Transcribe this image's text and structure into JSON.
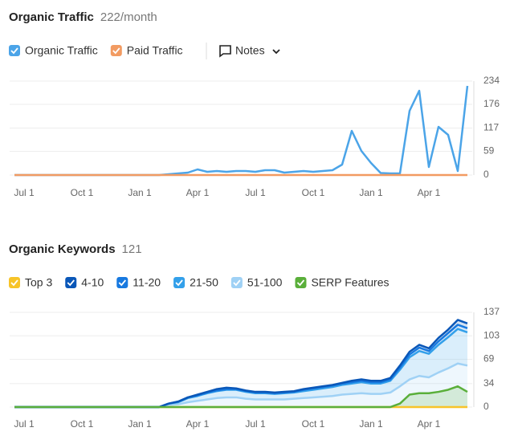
{
  "notes_button": "Notes",
  "chart_data": [
    {
      "type": "line",
      "title": "Organic Traffic",
      "subtitle": "222/month",
      "categories": [
        "",
        "Jul 1",
        "",
        "",
        "",
        "",
        "",
        "Oct 1",
        "",
        "",
        "",
        "",
        "",
        "Jan 1",
        "",
        "",
        "",
        "",
        "",
        "Apr 1",
        "",
        "",
        "",
        "",
        "",
        "Jul 1",
        "",
        "",
        "",
        "",
        "",
        "Oct 1",
        "",
        "",
        "",
        "",
        "",
        "Jan 1",
        "",
        "",
        "",
        "",
        "",
        "Apr 1",
        "",
        "",
        "",
        ""
      ],
      "series": [
        {
          "name": "Organic Traffic",
          "color": "#4ba4e8",
          "values": [
            0,
            0,
            0,
            0,
            0,
            0,
            0,
            0,
            0,
            0,
            0,
            0,
            0,
            0,
            0,
            0,
            2,
            4,
            6,
            14,
            8,
            10,
            8,
            10,
            10,
            8,
            12,
            12,
            6,
            8,
            10,
            8,
            10,
            12,
            26,
            110,
            60,
            30,
            5,
            4,
            4,
            160,
            210,
            20,
            120,
            100,
            10,
            222
          ]
        },
        {
          "name": "Paid Traffic",
          "color": "#f29b62",
          "values": [
            0,
            0,
            0,
            0,
            0,
            0,
            0,
            0,
            0,
            0,
            0,
            0,
            0,
            0,
            0,
            0,
            0,
            0,
            0,
            0,
            0,
            0,
            0,
            0,
            0,
            0,
            0,
            0,
            0,
            0,
            0,
            0,
            0,
            0,
            0,
            0,
            0,
            0,
            0,
            0,
            0,
            0,
            0,
            0,
            0,
            0,
            0,
            0
          ]
        }
      ],
      "ylim": [
        0,
        234
      ],
      "yticks": [
        0,
        59,
        117,
        176,
        234
      ],
      "grid": true,
      "stacked": false
    },
    {
      "type": "area",
      "title": "Organic Keywords",
      "subtitle": "121",
      "categories": [
        "",
        "Jul 1",
        "",
        "",
        "",
        "",
        "",
        "Oct 1",
        "",
        "",
        "",
        "",
        "",
        "Jan 1",
        "",
        "",
        "",
        "",
        "",
        "Apr 1",
        "",
        "",
        "",
        "",
        "",
        "Jul 1",
        "",
        "",
        "",
        "",
        "",
        "Oct 1",
        "",
        "",
        "",
        "",
        "",
        "Jan 1",
        "",
        "",
        "",
        "",
        "",
        "Apr 1",
        "",
        "",
        "",
        ""
      ],
      "series": [
        {
          "name": "Top 3",
          "color": "#f7c429",
          "values": [
            0,
            0,
            0,
            0,
            0,
            0,
            0,
            0,
            0,
            0,
            0,
            0,
            0,
            0,
            0,
            0,
            0,
            0,
            0,
            0,
            0,
            0,
            0,
            0,
            0,
            0,
            0,
            0,
            0,
            0,
            0,
            0,
            0,
            0,
            0,
            0,
            0,
            0,
            0,
            0,
            0,
            0,
            0,
            0,
            0,
            0,
            0,
            0
          ]
        },
        {
          "name": "51-100",
          "color": "#9fd1f5",
          "values": [
            0,
            0,
            0,
            0,
            0,
            0,
            0,
            0,
            0,
            0,
            0,
            0,
            0,
            0,
            0,
            0,
            3,
            4,
            7,
            9,
            11,
            13,
            14,
            14,
            12,
            11,
            11,
            11,
            11,
            12,
            13,
            14,
            15,
            16,
            18,
            19,
            20,
            19,
            19,
            21,
            30,
            40,
            45,
            43,
            50,
            56,
            63,
            60
          ]
        },
        {
          "name": "21-50",
          "color": "#33a0ea",
          "values": [
            0,
            0,
            0,
            0,
            0,
            0,
            0,
            0,
            0,
            0,
            0,
            0,
            0,
            0,
            0,
            0,
            2,
            3,
            6,
            7,
            9,
            10,
            11,
            11,
            10,
            9,
            9,
            8,
            9,
            9,
            10,
            11,
            12,
            13,
            14,
            15,
            16,
            15,
            15,
            17,
            24,
            32,
            36,
            34,
            40,
            45,
            50,
            48
          ]
        },
        {
          "name": "11-20",
          "color": "#1779e0",
          "values": [
            0,
            0,
            0,
            0,
            0,
            0,
            0,
            0,
            0,
            0,
            0,
            0,
            0,
            0,
            0,
            0,
            0,
            1,
            1,
            1,
            1,
            1,
            1,
            1,
            1,
            1,
            1,
            1,
            1,
            1,
            2,
            2,
            2,
            2,
            2,
            2,
            2,
            2,
            2,
            2,
            3,
            4,
            5,
            4,
            5,
            6,
            6,
            6
          ]
        },
        {
          "name": "4-10",
          "color": "#0a57b8",
          "values": [
            0,
            0,
            0,
            0,
            0,
            0,
            0,
            0,
            0,
            0,
            0,
            0,
            0,
            0,
            0,
            0,
            0,
            0,
            0,
            1,
            1,
            2,
            2,
            1,
            1,
            1,
            1,
            1,
            1,
            1,
            1,
            1,
            1,
            1,
            1,
            2,
            2,
            2,
            2,
            2,
            3,
            4,
            4,
            4,
            5,
            5,
            7,
            7
          ]
        },
        {
          "name": "SERP Features",
          "color": "#5aaf3a",
          "stack": false,
          "values": [
            0,
            0,
            0,
            0,
            0,
            0,
            0,
            0,
            0,
            0,
            0,
            0,
            0,
            0,
            0,
            0,
            0,
            0,
            0,
            0,
            0,
            0,
            0,
            0,
            0,
            0,
            0,
            0,
            0,
            0,
            0,
            0,
            0,
            0,
            0,
            0,
            0,
            0,
            0,
            0,
            5,
            18,
            20,
            20,
            22,
            25,
            30,
            22
          ]
        }
      ],
      "legend_order": [
        0,
        4,
        3,
        2,
        1,
        5
      ],
      "ylim": [
        0,
        137
      ],
      "yticks": [
        0,
        34,
        69,
        103,
        137
      ],
      "grid": true,
      "stacked": true
    }
  ]
}
